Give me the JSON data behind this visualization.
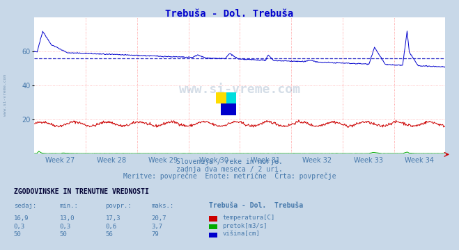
{
  "title": "Trebuša - Dol. Trebuša",
  "title_color": "#0000cc",
  "bg_color": "#c8d8e8",
  "plot_bg_color": "#ffffff",
  "xlabel_color": "#4477aa",
  "weeks": [
    "Week 27",
    "Week 28",
    "Week 29",
    "Week 30",
    "Week 31",
    "Week 32",
    "Week 33",
    "Week 34"
  ],
  "ylim": [
    0,
    80
  ],
  "yticks": [
    20,
    40,
    60
  ],
  "grid_color": "#ffaaaa",
  "avg_line_color": "#0000bb",
  "temp_color": "#cc0000",
  "flow_color": "#00aa00",
  "height_color": "#0000cc",
  "avg_value": 56,
  "subtitle1": "Slovenija / reke in morje.",
  "subtitle2": "zadnja dva meseca / 2 uri.",
  "subtitle3": "Meritve: povprečne  Enote: metrične  Črta: povprečje",
  "subtitle_color": "#4477aa",
  "table_title": "ZGODOVINSKE IN TRENUTNE VREDNOSTI",
  "table_headers": [
    "sedaj:",
    "min.:",
    "povpr.:",
    "maks.:"
  ],
  "table_rows": [
    [
      "16,9",
      "13,0",
      "17,3",
      "20,7"
    ],
    [
      "0,3",
      "0,3",
      "0,6",
      "3,7"
    ],
    [
      "50",
      "50",
      "56",
      "79"
    ]
  ],
  "legend_labels": [
    "temperatura[C]",
    "pretok[m3/s]",
    "višina[cm]"
  ],
  "legend_colors": [
    "#cc0000",
    "#00aa00",
    "#0000cc"
  ],
  "station_label": "Trebuša - Dol.  Trebuša",
  "watermark": "www.si-vreme.com",
  "watermark_color": "#6688aa",
  "left_watermark": "www.si-vreme.com",
  "n_points": 744
}
